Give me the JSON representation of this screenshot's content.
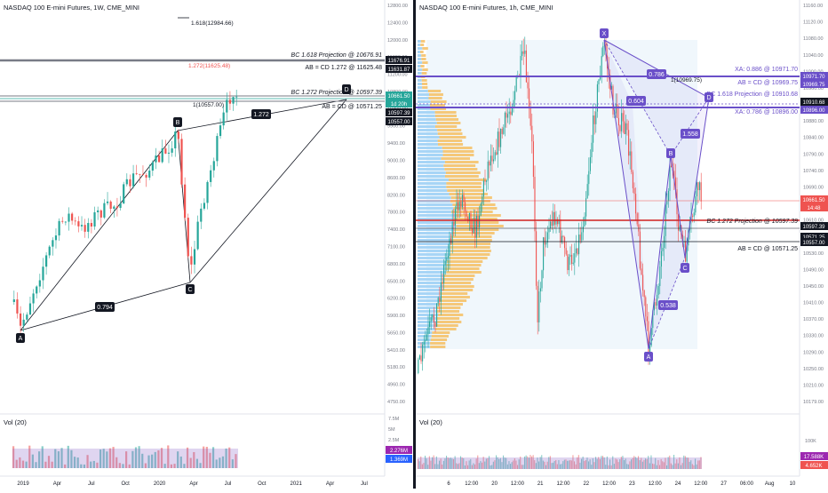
{
  "left_chart": {
    "title": "NASDAQ 100 E-mini Futures, 1W, CME_MINI",
    "price_axis": [
      "12800.00",
      "12400.00",
      "12000.00",
      "11600.00",
      "11200.00",
      "10800.00",
      "10400.00",
      "9900.00",
      "9400.00",
      "9000.00",
      "8600.00",
      "8200.00",
      "7800.00",
      "7400.00",
      "7100.00",
      "6800.00",
      "6500.00",
      "6200.00",
      "5900.00",
      "5650.00",
      "5410.00",
      "5180.00",
      "4960.00",
      "4750.00"
    ],
    "time_axis": [
      "2019",
      "Apr",
      "Jul",
      "Oct",
      "2020",
      "Apr",
      "Jul",
      "Oct",
      "2021",
      "Apr",
      "Jul"
    ],
    "badges": [
      "11676.91",
      "11631.87",
      "10661.50",
      "1d 20h",
      "10597.39",
      "10557.00"
    ],
    "annotations": {
      "ext_1618": "1.618(12984.66)",
      "bc_1618": "BC 1.618 Projection @ 10676.91",
      "ext_1272": "1.272(11625.48)",
      "abcd_1272": "AB = CD  1.272 @ 11625.48",
      "bc_1272": "BC 1.272 Projection @ 10597.39",
      "ab_cd": "AB = CD @ 10571.25",
      "one_level": "1(10557.00)",
      "ratio_1272": "1.272",
      "ratio_0794": "0.794"
    },
    "points": [
      "A",
      "B",
      "C",
      "D"
    ],
    "vol_label": "Vol (20)",
    "vol_axis": [
      "7.5M",
      "5M",
      "2.5M"
    ],
    "vol_badges": [
      "2.276M",
      "1.369M"
    ]
  },
  "right_chart": {
    "title": "NASDAQ 100 E-mini Futures, 1h, CME_MINI",
    "price_axis": [
      "11160.00",
      "11120.00",
      "11080.00",
      "11040.00",
      "11000.00",
      "10960.00",
      "10920.00",
      "10880.00",
      "10840.00",
      "10790.00",
      "10740.00",
      "10690.00",
      "10650.00",
      "10610.00",
      "10570.00",
      "10530.00",
      "10490.00",
      "10450.00",
      "10410.00",
      "10370.00",
      "10330.00",
      "10290.00",
      "10250.00",
      "10210.00",
      "10179.00"
    ],
    "time_axis": [
      "6",
      "12:00",
      "20",
      "12:00",
      "21",
      "12:00",
      "22",
      "12:00",
      "23",
      "12:00",
      "24",
      "12:00",
      "27",
      "06:00",
      "Aug",
      "10"
    ],
    "badges": [
      "10971.70",
      "10969.75",
      "10910.68",
      "10896.00",
      "10661.50",
      "14:48",
      "10597.39",
      "10571.25",
      "10557.00"
    ],
    "annotations": {
      "xa_0886": "XA: 0.886 @ 10971.70",
      "ab_cd_top": "AB = CD @ 10969.75",
      "bc_1618": "BC 1.618 Projection @ 10910.68",
      "xa_0786": "XA: 0.786 @ 10896.00",
      "one_level": "1(10969.75)",
      "bc_1272": "BC 1.272 Projection @ 10597.39",
      "ab_cd": "AB = CD @ 10571.25",
      "r_0786": "0.786",
      "r_0604": "0.604",
      "r_1558": "1.558",
      "r_0538": "0.538"
    },
    "points": [
      "X",
      "A",
      "B",
      "C",
      "D"
    ],
    "vol_label": "Vol (20)",
    "vol_axis": [
      "100K"
    ],
    "vol_badges": [
      "17.588K",
      "4.652K"
    ]
  },
  "colors": {
    "up": "#26a69a",
    "down": "#ef5350",
    "pattern_line": "#6a4fc9",
    "pattern_fill": "#9c88e8",
    "label_dark": "#131722",
    "badge_dark": "#131722",
    "red_line": "#d02020",
    "vp_orange": "#f5c26b",
    "vp_blue": "#9fd0f5"
  },
  "chart_data": [
    {
      "type": "candlestick",
      "title": "NASDAQ 100 E-mini Futures, 1W, CME_MINI",
      "pattern_points": {
        "A": 5820,
        "B": 9735,
        "C": 6630,
        "D": 10600
      },
      "levels": {
        "bc_1618": 10676.91,
        "abcd_1272": 11625.48,
        "bc_1272": 10597.39,
        "ab_cd": 10571.25,
        "ext_1618": 12984.66,
        "last": 10661.5
      }
    },
    {
      "type": "candlestick",
      "title": "NASDAQ 100 E-mini Futures, 1h, CME_MINI",
      "pattern_points": {
        "X": 11060,
        "A": 10300,
        "B": 10760,
        "C": 10500,
        "D": 10920
      },
      "levels": {
        "xa_0886": 10971.7,
        "ab_cd_top": 10969.75,
        "bc_1618": 10910.68,
        "xa_0786": 10896.0,
        "bc_1272": 10597.39,
        "ab_cd": 10571.25,
        "last": 10661.5
      }
    }
  ]
}
